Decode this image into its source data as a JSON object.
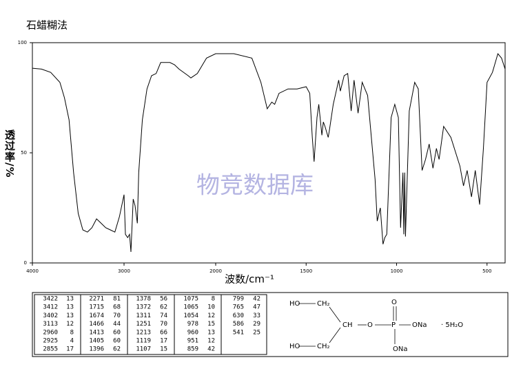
{
  "chart_data": {
    "type": "line",
    "title": "石蜡糊法",
    "xlabel": "波数/cm⁻¹",
    "ylabel": "透过率/%",
    "watermark": "物竞数据库",
    "xlim": [
      4000,
      400
    ],
    "x_break": 2000,
    "ylim": [
      0,
      100
    ],
    "xticks": [
      4000,
      3000,
      2000,
      1500,
      1000,
      500
    ],
    "yticks": [
      0,
      50,
      100
    ],
    "color": "#000000",
    "x": [
      4000,
      3900,
      3800,
      3700,
      3650,
      3600,
      3550,
      3500,
      3450,
      3400,
      3350,
      3300,
      3250,
      3200,
      3150,
      3100,
      3050,
      3000,
      2985,
      2960,
      2940,
      2925,
      2900,
      2880,
      2855,
      2840,
      2800,
      2750,
      2700,
      2650,
      2600,
      2500,
      2450,
      2400,
      2300,
      2271,
      2200,
      2100,
      2000,
      1900,
      1800,
      1750,
      1715,
      1690,
      1674,
      1650,
      1600,
      1550,
      1500,
      1480,
      1466,
      1456,
      1440,
      1430,
      1413,
      1405,
      1396,
      1378,
      1372,
      1350,
      1320,
      1311,
      1290,
      1270,
      1251,
      1235,
      1213,
      1190,
      1160,
      1119,
      1107,
      1090,
      1075,
      1065,
      1054,
      1030,
      1010,
      990,
      978,
      965,
      960,
      955,
      951,
      930,
      900,
      880,
      859,
      840,
      820,
      799,
      780,
      765,
      740,
      700,
      650,
      630,
      610,
      586,
      565,
      541,
      520,
      500,
      470,
      440,
      420,
      400
    ],
    "values": [
      88.4,
      88,
      86.5,
      82,
      75,
      65,
      41,
      22.5,
      15,
      14,
      16,
      20,
      18,
      16,
      15,
      14,
      21,
      31,
      13,
      11.5,
      13,
      5,
      29,
      26,
      18,
      41,
      65,
      79,
      85,
      86,
      91,
      91,
      90,
      88,
      85,
      84,
      86,
      93,
      95,
      95,
      93,
      82,
      70,
      73,
      72,
      77,
      79,
      79,
      80,
      77,
      57,
      46,
      66,
      72,
      58,
      64,
      62,
      57,
      60,
      72,
      83,
      78,
      85,
      86,
      69,
      83,
      68,
      82,
      76,
      38,
      19,
      25,
      8.5,
      11.5,
      13,
      66,
      72,
      66,
      16,
      41,
      13,
      41,
      12,
      69,
      82,
      79,
      42,
      47,
      54,
      43,
      52,
      47,
      62,
      57,
      44,
      35,
      42,
      30,
      42,
      26.5,
      52,
      82,
      86.5,
      95,
      93,
      88
    ]
  },
  "peaks": {
    "columns": [
      [
        [
          3422,
          13
        ],
        [
          3412,
          13
        ],
        [
          3402,
          13
        ],
        [
          3113,
          12
        ],
        [
          2960,
          8
        ],
        [
          2925,
          4
        ],
        [
          2855,
          17
        ]
      ],
      [
        [
          2271,
          81
        ],
        [
          1715,
          68
        ],
        [
          1674,
          70
        ],
        [
          1466,
          44
        ],
        [
          1413,
          60
        ],
        [
          1405,
          60
        ],
        [
          1396,
          62
        ]
      ],
      [
        [
          1378,
          56
        ],
        [
          1372,
          62
        ],
        [
          1311,
          74
        ],
        [
          1251,
          70
        ],
        [
          1213,
          66
        ],
        [
          1119,
          17
        ],
        [
          1107,
          15
        ]
      ],
      [
        [
          1075,
          8
        ],
        [
          1065,
          10
        ],
        [
          1054,
          12
        ],
        [
          978,
          15
        ],
        [
          960,
          13
        ],
        [
          951,
          12
        ],
        [
          859,
          42
        ]
      ],
      [
        [
          799,
          42
        ],
        [
          765,
          47
        ],
        [
          630,
          33
        ],
        [
          586,
          29
        ],
        [
          541,
          25
        ]
      ]
    ]
  },
  "structure": {
    "labels": [
      "HO",
      "CH₂",
      "CH",
      "O",
      "P",
      "O",
      "ONa",
      "· 5H₂O",
      "ONa",
      "HO",
      "CH₂"
    ]
  }
}
